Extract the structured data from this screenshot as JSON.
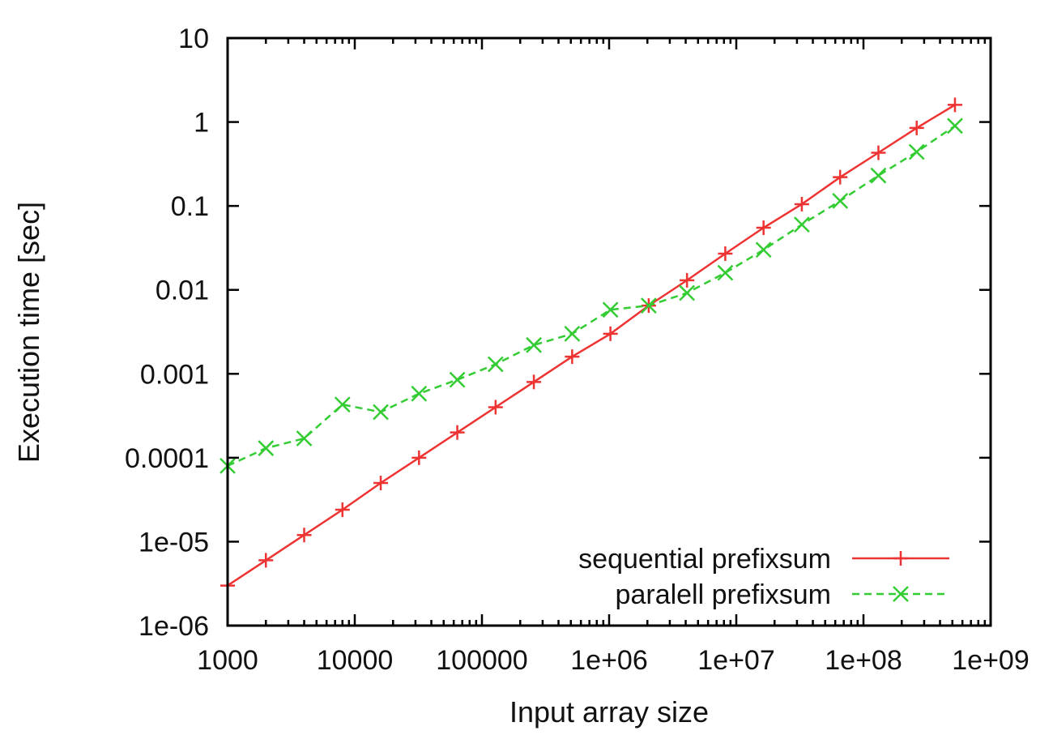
{
  "chart_data": {
    "type": "line",
    "title": "",
    "xlabel": "Input array size",
    "ylabel": "Execution time [sec]",
    "x_scale": "log",
    "y_scale": "log",
    "xlim": [
      1000,
      1000000000
    ],
    "ylim": [
      1e-06,
      10
    ],
    "x_tick_labels": [
      "1000",
      "10000",
      "100000",
      "1e+06",
      "1e+07",
      "1e+08",
      "1e+09"
    ],
    "y_tick_labels": [
      "1e-06",
      "1e-05",
      "0.0001",
      "0.001",
      "0.01",
      "0.1",
      "1",
      "10"
    ],
    "grid": false,
    "legend_position": "bottom-right",
    "x": [
      1000,
      2000,
      4000,
      8000,
      16000,
      32000,
      64000,
      128000,
      256000,
      512000,
      1024000,
      2048000,
      4096000,
      8192000,
      16384000,
      32768000,
      65536000,
      131072000,
      262144000,
      524288000
    ],
    "series": [
      {
        "name": "sequential prefixsum",
        "color": "#ee3333",
        "line_style": "solid",
        "marker": "plus",
        "values": [
          3e-06,
          6e-06,
          1.2e-05,
          2.4e-05,
          5e-05,
          0.0001,
          0.0002,
          0.0004,
          0.0008,
          0.0016,
          0.003,
          0.0065,
          0.013,
          0.027,
          0.055,
          0.105,
          0.22,
          0.43,
          0.85,
          1.6
        ]
      },
      {
        "name": "paralell prefixsum",
        "color": "#33cc33",
        "line_style": "dashed",
        "marker": "x",
        "values": [
          8e-05,
          0.00013,
          0.00017,
          0.00043,
          0.00035,
          0.00058,
          0.00085,
          0.0013,
          0.0022,
          0.003,
          0.0058,
          0.0065,
          0.0092,
          0.016,
          0.03,
          0.06,
          0.115,
          0.23,
          0.44,
          0.9
        ]
      }
    ]
  }
}
